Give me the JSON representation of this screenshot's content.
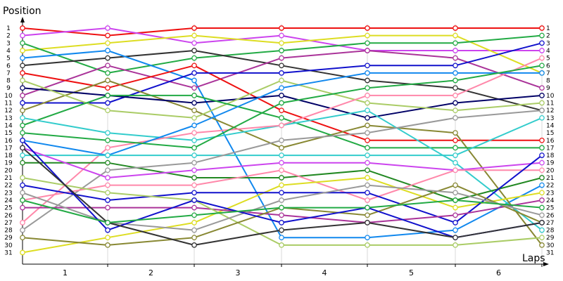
{
  "chart_data": {
    "type": "line",
    "title": "",
    "ylabel": "Position",
    "xlabel": "Laps",
    "x_tick_labels": [
      "1",
      "2",
      "3",
      "4",
      "5",
      "6"
    ],
    "y_tick_labels": [
      "1",
      "2",
      "3",
      "4",
      "5",
      "6",
      "7",
      "8",
      "9",
      "10",
      "11",
      "12",
      "13",
      "14",
      "15",
      "16",
      "17",
      "18",
      "19",
      "20",
      "21",
      "22",
      "23",
      "24",
      "25",
      "26",
      "27",
      "28",
      "29",
      "30",
      "31"
    ],
    "right_labels": [
      "1",
      "2",
      "3",
      "4",
      "5",
      "6",
      "7",
      "8",
      "9",
      "10",
      "11",
      "12",
      "13",
      "14",
      "15",
      "16",
      "17",
      "18",
      "19",
      "20",
      "21",
      "22",
      "23",
      "24",
      "25",
      "26",
      "27",
      "28",
      "29",
      "30",
      "31"
    ],
    "ylim": [
      1,
      31
    ],
    "grid": "vertical",
    "series": [
      {
        "color": "#ee1111",
        "values": [
          1,
          2,
          1,
          1,
          1,
          1,
          1
        ]
      },
      {
        "color": "#cc44ee",
        "values": [
          2,
          1,
          3,
          2,
          4,
          4,
          4
        ]
      },
      {
        "color": "#dddd22",
        "values": [
          4,
          3,
          2,
          3,
          2,
          2,
          7
        ]
      },
      {
        "color": "#22aa44",
        "values": [
          3,
          7,
          5,
          4,
          3,
          3,
          2
        ]
      },
      {
        "color": "#333333",
        "values": [
          6,
          5,
          4,
          6,
          8,
          9,
          12
        ]
      },
      {
        "color": "#1188ee",
        "values": [
          5,
          4,
          8,
          29,
          29,
          28,
          22
        ]
      },
      {
        "color": "#aa3399",
        "values": [
          10,
          6,
          9,
          5,
          4,
          5,
          9
        ]
      },
      {
        "color": "#ee1111",
        "values": [
          7,
          9,
          6,
          12,
          16,
          16,
          16
        ]
      },
      {
        "color": "#1111cc",
        "values": [
          11,
          11,
          7,
          7,
          6,
          6,
          3
        ]
      },
      {
        "color": "#888833",
        "values": [
          12,
          8,
          12,
          17,
          14,
          15,
          30
        ]
      },
      {
        "color": "#000066",
        "values": [
          9,
          10,
          11,
          10,
          13,
          11,
          10
        ]
      },
      {
        "color": "#aacc66",
        "values": [
          8,
          12,
          13,
          8,
          11,
          12,
          11
        ]
      },
      {
        "color": "#22aa44",
        "values": [
          14,
          10,
          10,
          13,
          17,
          17,
          17
        ]
      },
      {
        "color": "#33cccc",
        "values": [
          13,
          15,
          16,
          14,
          12,
          19,
          28
        ]
      },
      {
        "color": "#ff88aa",
        "values": [
          27,
          17,
          15,
          14,
          10,
          10,
          5
        ]
      },
      {
        "color": "#1188ee",
        "values": [
          16,
          18,
          14,
          9,
          7,
          7,
          7
        ]
      },
      {
        "color": "#22aa44",
        "values": [
          15,
          16,
          17,
          11,
          9,
          8,
          6
        ]
      },
      {
        "color": "#33cccc",
        "values": [
          18,
          18,
          18,
          18,
          18,
          18,
          13
        ]
      },
      {
        "color": "#228822",
        "values": [
          19,
          19,
          21,
          21,
          20,
          24,
          21
        ]
      },
      {
        "color": "#999999",
        "values": [
          28,
          20,
          19,
          16,
          15,
          13,
          12
        ]
      },
      {
        "color": "#cc44ee",
        "values": [
          17,
          21,
          20,
          19,
          19,
          20,
          19
        ]
      },
      {
        "color": "#ff88aa",
        "values": [
          24,
          22,
          22,
          20,
          24,
          20,
          20
        ]
      },
      {
        "color": "#dddd22",
        "values": [
          31,
          29,
          27,
          22,
          21,
          25,
          23
        ]
      },
      {
        "color": "#1111cc",
        "values": [
          22,
          24,
          23,
          23,
          23,
          27,
          18
        ]
      },
      {
        "color": "#aa3399",
        "values": [
          25,
          25,
          25,
          26,
          27,
          26,
          24
        ]
      },
      {
        "color": "#aacc66",
        "values": [
          21,
          23,
          24,
          30,
          30,
          30,
          29
        ]
      },
      {
        "color": "#888833",
        "values": [
          29,
          30,
          29,
          25,
          26,
          22,
          27
        ]
      },
      {
        "color": "#999999",
        "values": [
          23,
          27,
          28,
          24,
          22,
          23,
          26
        ]
      },
      {
        "color": "#1111cc",
        "values": [
          16,
          28,
          24,
          27,
          25,
          29,
          27
        ]
      },
      {
        "color": "#333333",
        "values": [
          17,
          27,
          30,
          28,
          27,
          29,
          27
        ]
      },
      {
        "color": "#22aa44",
        "values": [
          24,
          27,
          26,
          25,
          25,
          24,
          25
        ]
      }
    ]
  }
}
